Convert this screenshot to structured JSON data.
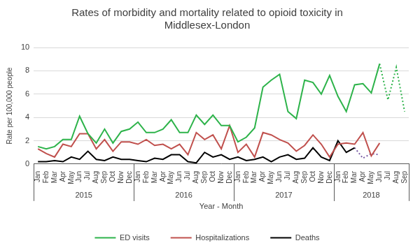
{
  "chart_data": {
    "type": "line",
    "title": "Rates of morbidity and mortality related to opioid toxicity in Middlesex-London",
    "x_label": "Year - Month",
    "y_label": "Rate per 100,000 people",
    "categories": [
      "Jan",
      "Feb",
      "Mar",
      "Apr",
      "May",
      "Jun",
      "Jul",
      "Aug",
      "Sep",
      "Oct",
      "Nov",
      "Dec",
      "Jan",
      "Feb",
      "Mar",
      "Apr",
      "May",
      "Jun",
      "Jul",
      "Aug",
      "Sep",
      "Oct",
      "Nov",
      "Dec",
      "Jan",
      "Feb",
      "Mar",
      "Apr",
      "May",
      "Jun",
      "Jul",
      "Aug",
      "Sep",
      "Oct",
      "Nov",
      "Dec",
      "Jan",
      "Feb",
      "Mar",
      "Apr",
      "May",
      "Jun",
      "Jul",
      "Aug",
      "Sep"
    ],
    "category_groups": [
      "2015",
      "2015",
      "2015",
      "2015",
      "2015",
      "2015",
      "2015",
      "2015",
      "2015",
      "2015",
      "2015",
      "2015",
      "2016",
      "2016",
      "2016",
      "2016",
      "2016",
      "2016",
      "2016",
      "2016",
      "2016",
      "2016",
      "2016",
      "2016",
      "2017",
      "2017",
      "2017",
      "2017",
      "2017",
      "2017",
      "2017",
      "2017",
      "2017",
      "2017",
      "2017",
      "2017",
      "2018",
      "2018",
      "2018",
      "2018",
      "2018",
      "2018",
      "2018",
      "2018",
      "2018"
    ],
    "ylim": [
      0,
      10
    ],
    "yticks": [
      0,
      2,
      4,
      6,
      8,
      10
    ],
    "grid": true,
    "legend": "bottom",
    "series": [
      {
        "name": "ED visits",
        "color": "#2db34a",
        "line_style": "solid",
        "marker": "none",
        "values": [
          1.5,
          1.3,
          1.5,
          2.1,
          2.1,
          4.1,
          2.6,
          1.8,
          3.0,
          1.8,
          2.8,
          3.0,
          3.6,
          2.7,
          2.7,
          3.0,
          3.8,
          2.7,
          2.7,
          4.2,
          3.4,
          4.2,
          3.3,
          3.3,
          1.9,
          2.3,
          3.1,
          6.6,
          7.2,
          7.7,
          4.5,
          3.9,
          7.2,
          7.0,
          6.0,
          7.6,
          5.8,
          4.5,
          6.8,
          6.9,
          6.1,
          8.6,
          null,
          null,
          null
        ]
      },
      {
        "name": "ED visits",
        "color": "#2db34a",
        "line_style": "dotted",
        "marker": "none",
        "values": [
          null,
          null,
          null,
          null,
          null,
          null,
          null,
          null,
          null,
          null,
          null,
          null,
          null,
          null,
          null,
          null,
          null,
          null,
          null,
          null,
          null,
          null,
          null,
          null,
          null,
          null,
          null,
          null,
          null,
          null,
          null,
          null,
          null,
          null,
          null,
          null,
          null,
          null,
          null,
          null,
          null,
          8.6,
          5.5,
          8.3,
          4.5
        ]
      },
      {
        "name": "Hospitalizations",
        "color": "#c0504d",
        "line_style": "solid",
        "marker": "none",
        "values": [
          1.3,
          0.9,
          0.6,
          1.7,
          1.5,
          2.6,
          2.6,
          1.3,
          2.1,
          1.1,
          1.9,
          1.9,
          1.7,
          2.1,
          1.6,
          1.7,
          1.3,
          1.7,
          0.8,
          2.7,
          2.1,
          2.5,
          1.3,
          3.3,
          1.0,
          1.7,
          0.6,
          2.7,
          2.5,
          2.1,
          1.8,
          1.1,
          1.6,
          2.5,
          1.7,
          0.6,
          1.7,
          1.8,
          1.7,
          2.7,
          0.7,
          1.8,
          null,
          null,
          null
        ]
      },
      {
        "name": "Deaths",
        "color": "#000000",
        "line_style": "solid",
        "marker": "none",
        "values": [
          0.2,
          0.2,
          0.3,
          0.2,
          0.6,
          0.4,
          1.1,
          0.4,
          0.3,
          0.6,
          0.4,
          0.4,
          0.3,
          0.2,
          0.5,
          0.4,
          0.8,
          0.8,
          0.2,
          0.1,
          1.0,
          0.6,
          0.8,
          0.4,
          0.6,
          0.3,
          0.4,
          0.6,
          0.2,
          0.6,
          0.8,
          0.4,
          0.5,
          1.4,
          0.6,
          0.3,
          2.0,
          1.0,
          1.4,
          null,
          null,
          null,
          null,
          null,
          null
        ]
      },
      {
        "name": "Deaths",
        "color": "#7b5ea7",
        "line_style": "dotted",
        "marker": "none",
        "values": [
          null,
          null,
          null,
          null,
          null,
          null,
          null,
          null,
          null,
          null,
          null,
          null,
          null,
          null,
          null,
          null,
          null,
          null,
          null,
          null,
          null,
          null,
          null,
          null,
          null,
          null,
          null,
          null,
          null,
          null,
          null,
          null,
          null,
          null,
          null,
          null,
          null,
          null,
          1.4,
          0.5,
          0.9,
          0.8,
          null,
          null,
          null
        ]
      }
    ]
  }
}
